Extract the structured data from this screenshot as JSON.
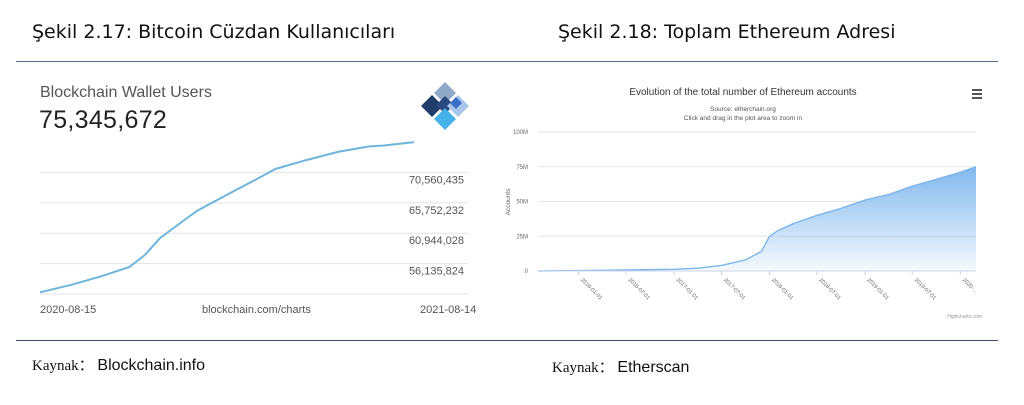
{
  "figure_left_title": "Şekil 2.17: Bitcoin Cüzdan Kullanıcıları",
  "figure_right_title": "Şekil 2.18: Toplam Ethereum Adresi",
  "source_left": {
    "prefix": "Kaynak：",
    "name": "Blockchain.info"
  },
  "source_right": {
    "prefix": "Kaynak：",
    "name": "Etherscan"
  },
  "chart_data": [
    {
      "type": "line",
      "title": "Blockchain Wallet Users",
      "headline_value": "75,345,672",
      "y_tick_labels": [
        "70,560,435",
        "65,752,232",
        "60,944,028",
        "56,135,824"
      ],
      "y_ticks": [
        70560435,
        65752232,
        60944028,
        56135824
      ],
      "ylim": [
        51327620,
        75368640
      ],
      "x_labels": [
        "2020-08-15",
        "blockchain.com/charts",
        "2021-08-14"
      ],
      "x_range": [
        "2020-08-15",
        "2021-08-14"
      ],
      "x": [
        "2020-08-15",
        "2020-09-15",
        "2020-10-15",
        "2020-11-10",
        "2020-11-25",
        "2020-12-10",
        "2020-12-25",
        "2021-01-15",
        "2021-02-15",
        "2021-03-15",
        "2021-04-01",
        "2021-05-01",
        "2021-06-01",
        "2021-06-20",
        "2021-07-01",
        "2021-07-15",
        "2021-08-14"
      ],
      "values": [
        51600000,
        52800000,
        54200000,
        55600000,
        57500000,
        60200000,
        62000000,
        64500000,
        67200000,
        69600000,
        71100000,
        72500000,
        73800000,
        74350000,
        74650000,
        74800000,
        75345672
      ],
      "color": "#6fb5db",
      "grid": true
    },
    {
      "type": "area",
      "title": "Evolution of the total number of Ethereum accounts",
      "subtitle": "Source: etherchain.org",
      "subtitle2": "Click and drag in the plot area to zoom in",
      "ylabel": "Accounts",
      "y_tick_labels": [
        "100M",
        "75M",
        "50M",
        "25M",
        "0"
      ],
      "y_ticks": [
        100000000,
        75000000,
        50000000,
        25000000,
        0
      ],
      "ylim": [
        0,
        100000000
      ],
      "x_tick_labels": [
        "2016-01-01",
        "2016-07-01",
        "2017-01-01",
        "2017-07-01",
        "2018-01-01",
        "2018-07-01",
        "2019-01-01",
        "2019-07-01",
        "2020-..."
      ],
      "credits": "Highcharts.com",
      "x": [
        "2015-07-30",
        "2016-01-01",
        "2016-07-01",
        "2017-01-01",
        "2017-04-01",
        "2017-07-01",
        "2017-10-01",
        "2017-12-01",
        "2018-01-01",
        "2018-02-01",
        "2018-04-01",
        "2018-07-01",
        "2018-10-01",
        "2019-01-01",
        "2019-04-01",
        "2019-07-01",
        "2019-10-01",
        "2020-01-01",
        "2020-03-01"
      ],
      "values": [
        0,
        300000,
        700000,
        1200000,
        2000000,
        4000000,
        8000000,
        14000000,
        25000000,
        29000000,
        34000000,
        40000000,
        45000000,
        51000000,
        55000000,
        61000000,
        66000000,
        71000000,
        75000000
      ],
      "color": "#7cb5ec",
      "grid": true
    }
  ]
}
